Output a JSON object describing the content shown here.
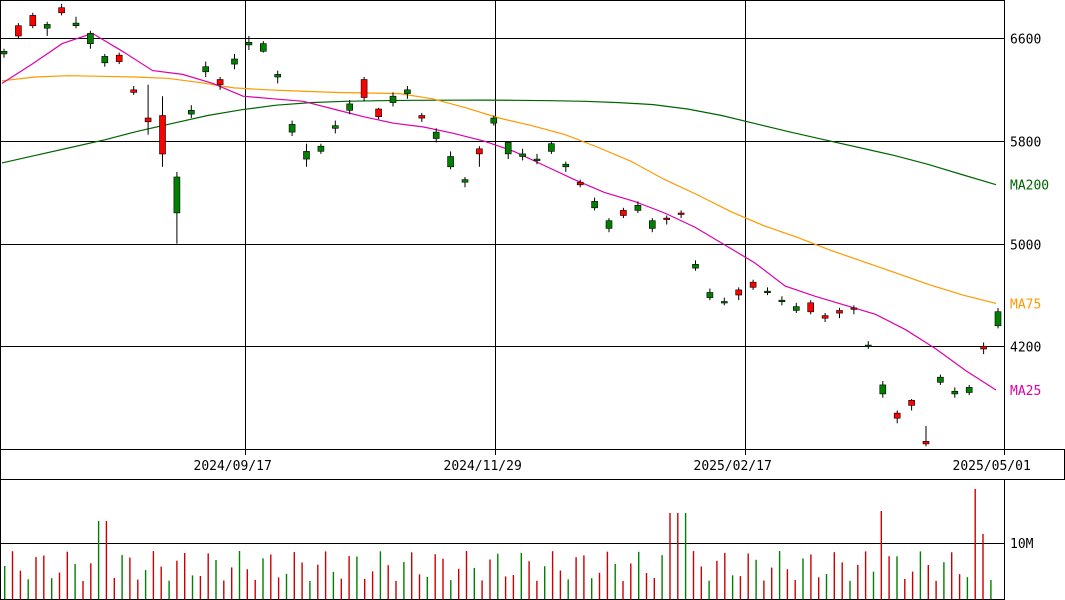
{
  "chart_data": {
    "type": "candlestick",
    "price_axis": {
      "ticks": [
        6600,
        5800,
        5000,
        4200
      ],
      "range": [
        3400,
        6900
      ]
    },
    "date_axis": {
      "ticks": [
        "2024/09/17",
        "2024/11/29",
        "2025/02/17",
        "2025/05/01"
      ]
    },
    "volume_axis": {
      "ticks": [
        "10M"
      ]
    },
    "moving_averages": [
      {
        "name": "MA200",
        "color": "#006400",
        "values": [
          5630,
          5690,
          5750,
          5810,
          5880,
          5940,
          6000,
          6045,
          6080,
          6100,
          6110,
          6115,
          6118,
          6119,
          6120,
          6118,
          6115,
          6110,
          6100,
          6085,
          6050,
          6000,
          5935,
          5870,
          5810,
          5750,
          5690,
          5620,
          5540,
          5460
        ]
      },
      {
        "name": "MA75",
        "color": "#ff9900",
        "values": [
          6270,
          6300,
          6310,
          6305,
          6300,
          6290,
          6255,
          6215,
          6200,
          6190,
          6180,
          6175,
          6170,
          6130,
          6060,
          5980,
          5920,
          5850,
          5750,
          5640,
          5500,
          5380,
          5250,
          5140,
          5050,
          4950,
          4860,
          4770,
          4680,
          4600,
          4535
        ]
      },
      {
        "name": "MA25",
        "color": "#dd00aa",
        "values": [
          6250,
          6400,
          6560,
          6640,
          6500,
          6350,
          6320,
          6250,
          6150,
          6130,
          6110,
          6050,
          5990,
          5940,
          5910,
          5860,
          5800,
          5720,
          5610,
          5500,
          5400,
          5330,
          5240,
          5130,
          4990,
          4850,
          4670,
          4590,
          4520,
          4450,
          4330,
          4180,
          4010,
          3860
        ]
      }
    ],
    "candles": [
      [
        6500,
        6520,
        6450,
        6480
      ],
      [
        6620,
        6720,
        6600,
        6700
      ],
      [
        6700,
        6800,
        6680,
        6780
      ],
      [
        6710,
        6730,
        6620,
        6680
      ],
      [
        6800,
        6870,
        6780,
        6840
      ],
      [
        6720,
        6770,
        6680,
        6700
      ],
      [
        6640,
        6660,
        6520,
        6560
      ],
      [
        6460,
        6480,
        6380,
        6410
      ],
      [
        6420,
        6490,
        6400,
        6470
      ],
      [
        6180,
        6230,
        6160,
        6200
      ],
      [
        5950,
        6240,
        5850,
        5980
      ],
      [
        5700,
        6150,
        5600,
        6000
      ],
      [
        5520,
        5560,
        5000,
        5240
      ],
      [
        6040,
        6080,
        5980,
        6010
      ],
      [
        6380,
        6420,
        6300,
        6340
      ],
      [
        6240,
        6300,
        6200,
        6280
      ],
      [
        6440,
        6480,
        6360,
        6400
      ],
      [
        6570,
        6620,
        6510,
        6550
      ],
      [
        6560,
        6580,
        6490,
        6500
      ],
      [
        6320,
        6350,
        6250,
        6300
      ],
      [
        5930,
        5960,
        5840,
        5870
      ],
      [
        5720,
        5780,
        5600,
        5660
      ],
      [
        5760,
        5780,
        5700,
        5720
      ],
      [
        5920,
        5960,
        5860,
        5900
      ],
      [
        6090,
        6120,
        6010,
        6040
      ],
      [
        6140,
        6300,
        6110,
        6280
      ],
      [
        5990,
        6060,
        5970,
        6050
      ],
      [
        6150,
        6180,
        6070,
        6100
      ],
      [
        6200,
        6230,
        6130,
        6170
      ],
      [
        5980,
        6020,
        5950,
        6000
      ],
      [
        5870,
        5900,
        5790,
        5820
      ],
      [
        5680,
        5720,
        5580,
        5600
      ],
      [
        5500,
        5520,
        5440,
        5480
      ],
      [
        5700,
        5760,
        5600,
        5740
      ],
      [
        5980,
        6000,
        5920,
        5940
      ],
      [
        5790,
        5800,
        5660,
        5700
      ],
      [
        5700,
        5740,
        5650,
        5680
      ],
      [
        5660,
        5700,
        5620,
        5650
      ],
      [
        5780,
        5800,
        5700,
        5720
      ],
      [
        5620,
        5640,
        5560,
        5600
      ],
      [
        5460,
        5500,
        5440,
        5480
      ],
      [
        5330,
        5360,
        5260,
        5280
      ],
      [
        5180,
        5200,
        5090,
        5120
      ],
      [
        5220,
        5280,
        5200,
        5260
      ],
      [
        5300,
        5330,
        5240,
        5260
      ],
      [
        5180,
        5200,
        5090,
        5120
      ],
      [
        5190,
        5220,
        5150,
        5200
      ],
      [
        5230,
        5260,
        5200,
        5240
      ],
      [
        4840,
        4870,
        4790,
        4810
      ],
      [
        4620,
        4650,
        4560,
        4580
      ],
      [
        4550,
        4580,
        4520,
        4540
      ],
      [
        4600,
        4660,
        4560,
        4640
      ],
      [
        4660,
        4720,
        4640,
        4700
      ],
      [
        4630,
        4660,
        4600,
        4620
      ],
      [
        4560,
        4590,
        4520,
        4550
      ],
      [
        4510,
        4540,
        4460,
        4480
      ],
      [
        4470,
        4560,
        4450,
        4540
      ],
      [
        4420,
        4460,
        4390,
        4440
      ],
      [
        4460,
        4500,
        4420,
        4480
      ],
      [
        4490,
        4520,
        4450,
        4500
      ],
      [
        4210,
        4240,
        4180,
        4200
      ],
      [
        3900,
        3930,
        3800,
        3830
      ],
      [
        3640,
        3700,
        3600,
        3680
      ],
      [
        3740,
        3790,
        3700,
        3780
      ],
      [
        3440,
        3580,
        3420,
        3460
      ],
      [
        3960,
        3980,
        3900,
        3920
      ],
      [
        3850,
        3880,
        3800,
        3830
      ],
      [
        3880,
        3900,
        3820,
        3840
      ],
      [
        4180,
        4230,
        4140,
        4200
      ],
      [
        4470,
        4500,
        4340,
        4360
      ]
    ],
    "volume_bars": 127
  }
}
